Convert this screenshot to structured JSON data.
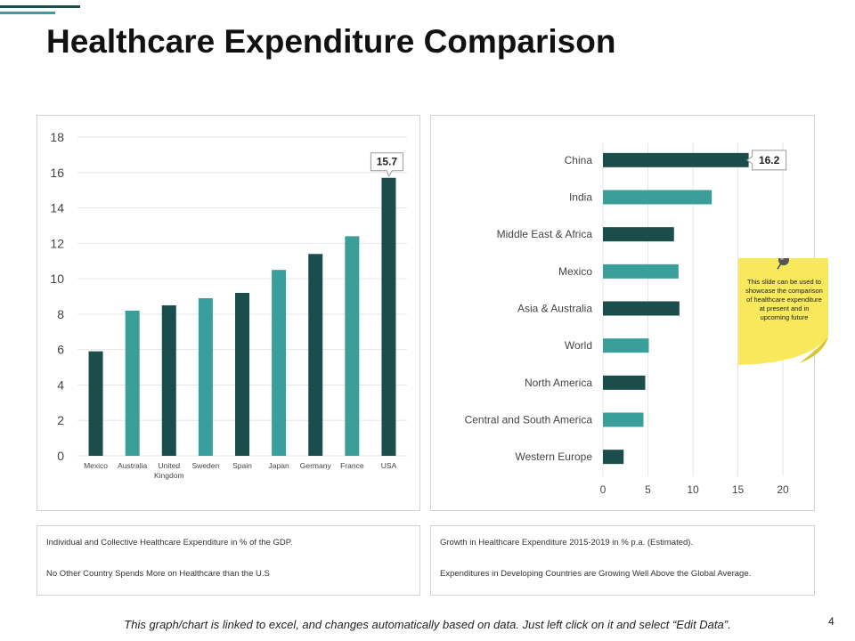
{
  "slide": {
    "title": "Healthcare Expenditure Comparison",
    "page_number": "4",
    "footer_note": "This graph/chart is linked to excel, and changes automatically based on data.  Just left click on it and select “Edit Data”.",
    "sticky_note": "This slide can be used to showcase the comparison of healthcare expenditure at present and in upcoming future",
    "colors": {
      "dark": "#1b4d4a",
      "teal": "#3a9e9b",
      "sticky": "#f7e85c",
      "sticky_fold": "#d9c632"
    }
  },
  "captions": {
    "left": [
      "Individual and Collective Healthcare Expenditure in % of the GDP.",
      "No Other Country Spends More on Healthcare than the U.S"
    ],
    "right": [
      "Growth in Healthcare Expenditure 2015-2019 in % p.a. (Estimated).",
      "Expenditures in Developing Countries are Growing Well Above the Global Average."
    ]
  },
  "chart_data": [
    {
      "type": "bar",
      "orientation": "vertical",
      "title": "",
      "categories": [
        "Mexico",
        "Australia",
        "United Kingdom",
        "Sweden",
        "Spain",
        "Japan",
        "Germany",
        "France",
        "USA"
      ],
      "category_lines": [
        [
          "Mexico"
        ],
        [
          "Australia"
        ],
        [
          "United",
          "Kingdom"
        ],
        [
          "Sweden"
        ],
        [
          "Spain"
        ],
        [
          "Japan"
        ],
        [
          "Germany"
        ],
        [
          "France"
        ],
        [
          "USA"
        ]
      ],
      "values": [
        5.9,
        8.2,
        8.5,
        8.9,
        9.2,
        10.5,
        11.4,
        12.4,
        15.7
      ],
      "bar_colors": [
        "dark",
        "teal",
        "dark",
        "teal",
        "dark",
        "teal",
        "dark",
        "teal",
        "dark"
      ],
      "ylim": [
        0,
        18
      ],
      "yticks": [
        0,
        2,
        4,
        6,
        8,
        10,
        12,
        14,
        16,
        18
      ],
      "callout": {
        "index": 8,
        "label": "15.7"
      },
      "grid": true
    },
    {
      "type": "bar",
      "orientation": "horizontal",
      "title": "",
      "categories": [
        "China",
        "India",
        "Middle East & Africa",
        "Mexico",
        "Asia & Australia",
        "World",
        "North America",
        "Central and South America",
        "Western Europe"
      ],
      "values": [
        16.2,
        12.1,
        7.9,
        8.4,
        8.5,
        5.1,
        4.7,
        4.5,
        2.3
      ],
      "bar_colors": [
        "dark",
        "teal",
        "dark",
        "teal",
        "dark",
        "teal",
        "dark",
        "teal",
        "dark"
      ],
      "xlim": [
        0,
        20
      ],
      "xticks": [
        0,
        5,
        10,
        15,
        20
      ],
      "callout": {
        "index": 0,
        "label": "16.2"
      },
      "grid": true
    }
  ]
}
